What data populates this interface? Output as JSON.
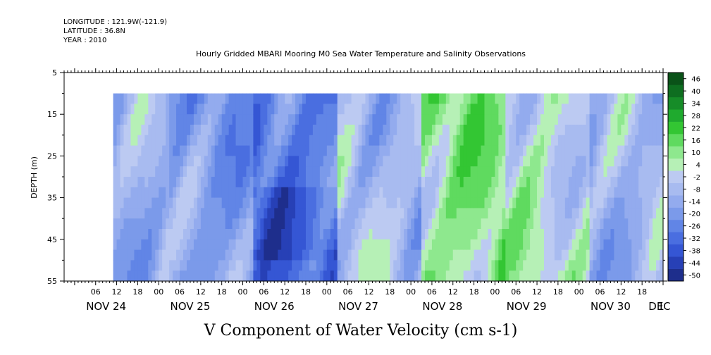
{
  "header": {
    "longitude": "LONGITUDE : 121.9W(-121.9)",
    "latitude": "LATITUDE : 36.8N",
    "year": "YEAR : 2010"
  },
  "chart_data": {
    "type": "heatmap",
    "title": "Hourly Gridded MBARI Mooring M0 Sea Water Temperature and Salinity Observations",
    "xlabel": "V Component of Water Velocity (cm s-1)",
    "ylabel": "DEPTH (m)",
    "x_range": [
      "2010-11-23T21:00",
      "2010-12-01T00:00"
    ],
    "data_x_range": [
      "2010-11-24T11:00",
      "2010-11-30T23:00"
    ],
    "ylim": [
      55,
      5
    ],
    "data_depth_range": [
      10,
      55
    ],
    "y_ticks": [
      5,
      15,
      25,
      35,
      45,
      55
    ],
    "y_tick_labels": [
      "5",
      "15",
      "25",
      "35",
      "45",
      "55"
    ],
    "x_hour_labels": [
      "06",
      "12",
      "18",
      "00",
      "06",
      "12",
      "18",
      "00",
      "06",
      "12",
      "18",
      "00",
      "06",
      "12",
      "18",
      "00",
      "06",
      "12",
      "18",
      "00",
      "06",
      "12",
      "18",
      "00",
      "06",
      "12",
      "18",
      "00",
      "06",
      "12",
      "18",
      "00"
    ],
    "x_day_labels": [
      "NOV 24",
      "NOV 25",
      "NOV 26",
      "NOV 27",
      "NOV 28",
      "NOV 29",
      "NOV 30",
      "DEC",
      "1"
    ],
    "colorbar": {
      "levels": [
        -50,
        -44,
        -38,
        -32,
        -26,
        -20,
        -14,
        -8,
        -2,
        4,
        10,
        16,
        22,
        28,
        34,
        40,
        46
      ],
      "labels": [
        "46",
        "40",
        "34",
        "28",
        "22",
        "16",
        "10",
        "4",
        "-2",
        "-8",
        "-14",
        "-20",
        "-26",
        "-32",
        "-38",
        "-44",
        "-50"
      ],
      "colors_low_to_high": [
        "#1e2e8c",
        "#2740b6",
        "#3556d4",
        "#4a6ee0",
        "#6185e6",
        "#7b9aea",
        "#93abee",
        "#a8bbf0",
        "#bccaf2",
        "#b6f0b6",
        "#8ee88e",
        "#5fda5f",
        "#33c633",
        "#1faa2e",
        "#168c28",
        "#0e6e20",
        "#0a5218"
      ]
    },
    "bands": [
      {
        "day": "NOV 24",
        "pattern": "mostly negative, green streak near start",
        "typical_v": -10
      },
      {
        "day": "NOV 25",
        "pattern": "green in mid-depth early, then negative",
        "typical_v": -15
      },
      {
        "day": "NOV 26",
        "pattern": "strongly negative core near 38 m",
        "typical_v": -26
      },
      {
        "day": "NOV 27",
        "pattern": "mixed, slight positive",
        "typical_v": -5
      },
      {
        "day": "NOV 28",
        "pattern": "positive (green)",
        "typical_v": 12
      },
      {
        "day": "NOV 29",
        "pattern": "positive then negative",
        "typical_v": 4
      },
      {
        "day": "NOV 30",
        "pattern": "mixed negative with green streaks",
        "typical_v": -8
      }
    ]
  }
}
